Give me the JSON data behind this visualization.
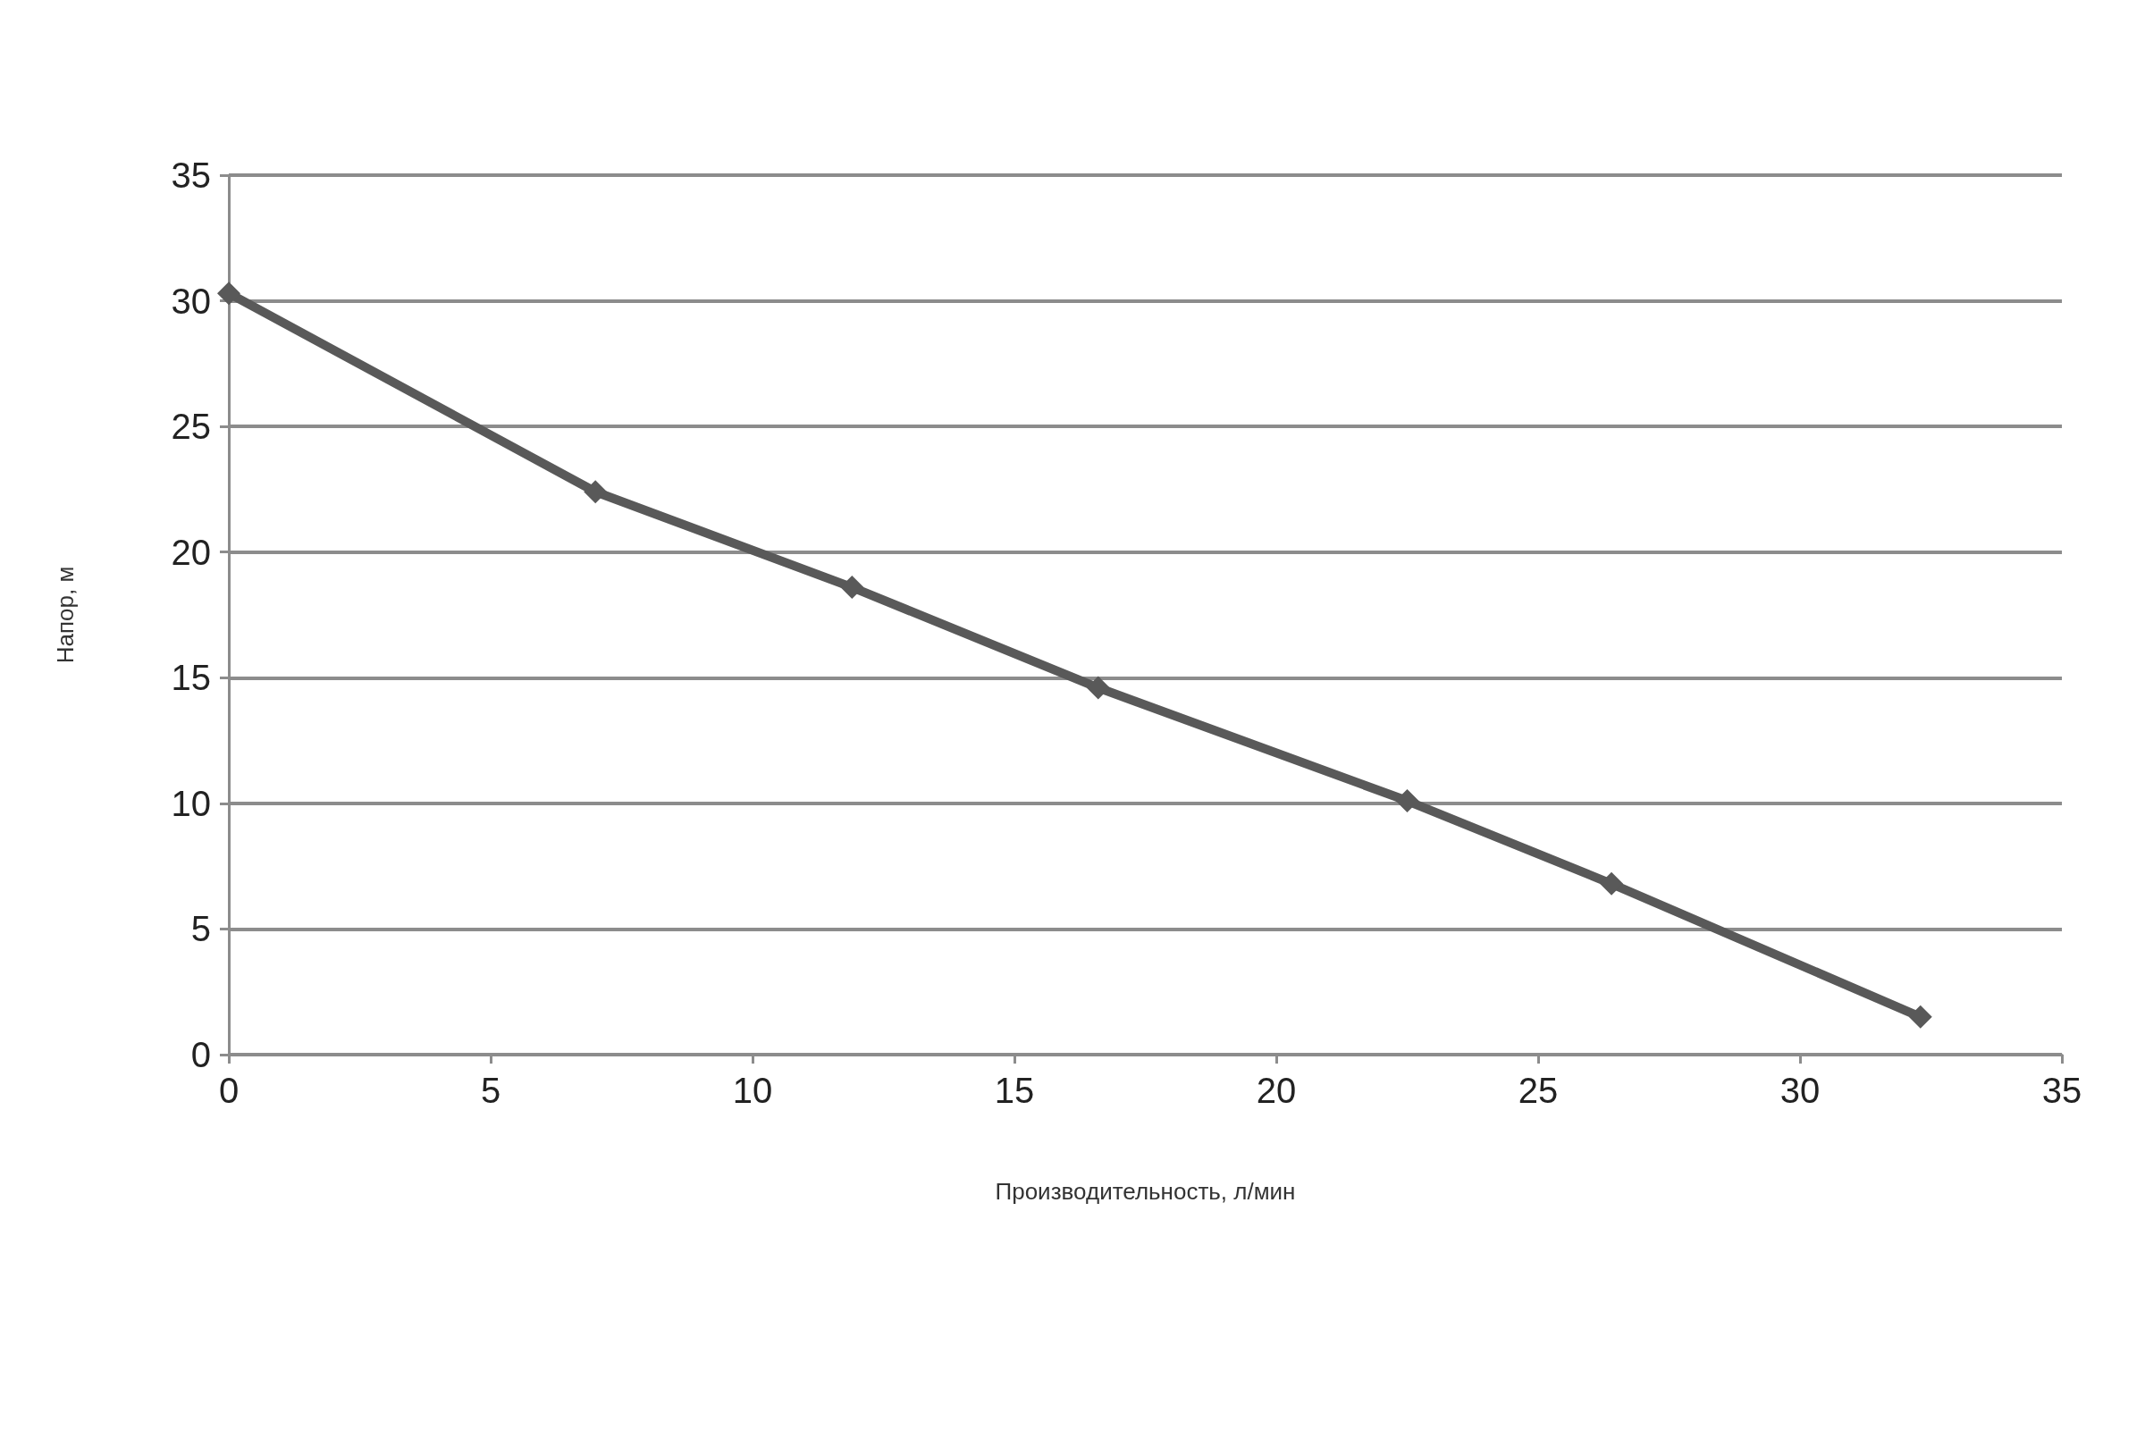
{
  "chart_data": {
    "type": "line",
    "xlabel": "Производительность, л/мин",
    "ylabel": "Напор, м",
    "x": [
      0,
      7,
      11.9,
      16.6,
      22.5,
      26.4,
      32.3
    ],
    "series": [
      {
        "color": "#595959",
        "values": [
          30.3,
          22.4,
          18.6,
          14.6,
          10.1,
          6.8,
          1.5
        ]
      }
    ],
    "xlim": [
      0,
      35
    ],
    "xticks": [
      0,
      5,
      10,
      15,
      20,
      25,
      30,
      35
    ],
    "ylim": [
      0,
      35
    ],
    "yticks": [
      0,
      5,
      10,
      15,
      20,
      25,
      30,
      35
    ],
    "grid": "y",
    "marker": "diamond",
    "line_style": "solid",
    "legend": false
  }
}
